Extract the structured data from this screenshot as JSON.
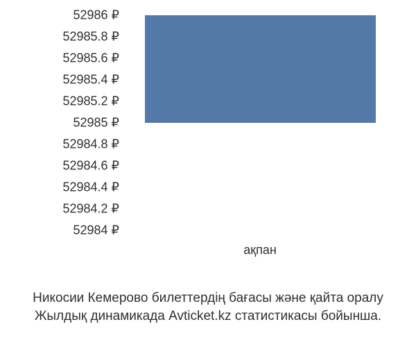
{
  "chart": {
    "type": "bar",
    "y_ticks": [
      {
        "label": "52986 ₽",
        "value": 52986
      },
      {
        "label": "52985.8 ₽",
        "value": 52985.8
      },
      {
        "label": "52985.6 ₽",
        "value": 52985.6
      },
      {
        "label": "52985.4 ₽",
        "value": 52985.4
      },
      {
        "label": "52985.2 ₽",
        "value": 52985.2
      },
      {
        "label": "52985 ₽",
        "value": 52985
      },
      {
        "label": "52984.8 ₽",
        "value": 52984.8
      },
      {
        "label": "52984.6 ₽",
        "value": 52984.6
      },
      {
        "label": "52984.4 ₽",
        "value": 52984.4
      },
      {
        "label": "52984.2 ₽",
        "value": 52984.2
      },
      {
        "label": "52984 ₽",
        "value": 52984
      }
    ],
    "x_label": "ақпан",
    "bar": {
      "value": 52986,
      "baseline": 52985,
      "color": "#5279a8",
      "left_pct": 5,
      "width_pct": 90
    },
    "ylim": [
      52984,
      52986
    ],
    "background_color": "#ffffff",
    "text_color": "#303030",
    "label_fontsize": 18
  },
  "caption": {
    "line1": "Никосии Кемерово билеттердің бағасы және қайта оралу",
    "line2": "Жылдық динамикада Avticket.kz статистикасы бойынша."
  }
}
